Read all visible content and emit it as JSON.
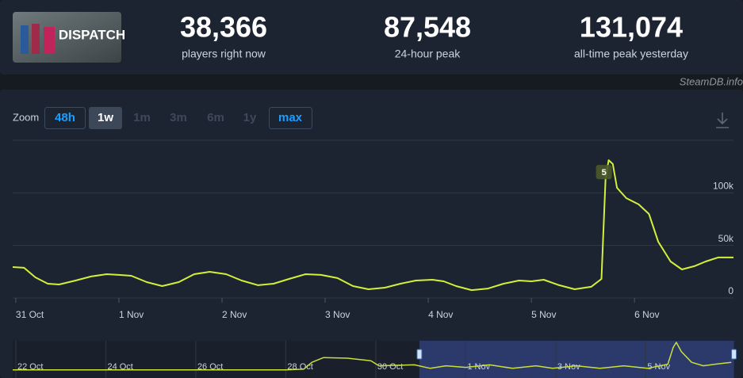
{
  "header": {
    "logo_text": "DISPATCH",
    "stats": [
      {
        "value": "38,366",
        "label": "players right now"
      },
      {
        "value": "87,548",
        "label": "24-hour peak"
      },
      {
        "value": "131,074",
        "label": "all-time peak yesterday"
      }
    ],
    "source": "SteamDB.info"
  },
  "zoom": {
    "label": "Zoom",
    "options": [
      "48h",
      "1w",
      "1m",
      "3m",
      "6m",
      "1y",
      "max"
    ]
  },
  "chart_data": [
    {
      "type": "line",
      "annotations": [
        "5"
      ],
      "color": "#d4ef3a",
      "x": [
        -0.03,
        0.08,
        0.19,
        0.31,
        0.42,
        0.58,
        0.73,
        0.88,
        1.0,
        1.12,
        1.27,
        1.42,
        1.58,
        1.73,
        1.88,
        2.04,
        2.19,
        2.35,
        2.5,
        2.65,
        2.81,
        2.96,
        3.12,
        3.27,
        3.42,
        3.58,
        3.73,
        3.88,
        4.04,
        4.15,
        4.27,
        4.42,
        4.58,
        4.73,
        4.88,
        5.0,
        5.12,
        5.27,
        5.42,
        5.58,
        5.68,
        5.72,
        5.75,
        5.79,
        5.83,
        5.92,
        6.04,
        6.14,
        6.23,
        6.35,
        6.46,
        6.58,
        6.69,
        6.81,
        6.96
      ],
      "values": [
        29400,
        28700,
        19600,
        13600,
        12800,
        16600,
        20400,
        22600,
        21900,
        21100,
        15100,
        11300,
        15100,
        22600,
        24900,
        22600,
        16600,
        12100,
        13600,
        18100,
        22600,
        21900,
        18900,
        11300,
        8300,
        9800,
        13600,
        16600,
        17300,
        15800,
        11300,
        7500,
        9000,
        13600,
        16600,
        15800,
        17300,
        12100,
        8300,
        10600,
        18100,
        113800,
        131100,
        127400,
        104800,
        95000,
        89000,
        79900,
        53500,
        34700,
        27100,
        30200,
        34700,
        38500,
        38500
      ],
      "xlim": [
        -0.03,
        6.96
      ],
      "xticks": [
        {
          "value": 0,
          "label": "31 Oct"
        },
        {
          "value": 1,
          "label": "1 Nov"
        },
        {
          "value": 2,
          "label": "2 Nov"
        },
        {
          "value": 3,
          "label": "3 Nov"
        },
        {
          "value": 4,
          "label": "4 Nov"
        },
        {
          "value": 5,
          "label": "5 Nov"
        },
        {
          "value": 6,
          "label": "6 Nov"
        }
      ],
      "ylim": [
        0,
        150000
      ],
      "yticks": [
        0,
        {
          "value": 50000,
          "label": "50k"
        },
        {
          "value": 100000,
          "label": "100k"
        }
      ],
      "grid": true
    },
    {
      "type": "line",
      "color": "#c9e03a",
      "x": [
        -9.07,
        -6,
        -3,
        -2.6,
        -2.42,
        -2.16,
        -1.63,
        -1.11,
        -0.93,
        -0.14,
        0.21,
        0.56,
        1.0,
        1.53,
        2.04,
        2.56,
        2.93,
        3.46,
        3.98,
        4.51,
        5.04,
        5.49,
        5.61,
        5.68,
        5.79,
        6.02,
        6.28,
        6.54,
        6.9
      ],
      "values": [
        11000,
        11000,
        11000,
        14600,
        44000,
        65000,
        62000,
        51000,
        29000,
        33000,
        18000,
        29000,
        22000,
        33000,
        18000,
        29000,
        18000,
        29000,
        18000,
        29000,
        18000,
        36000,
        109000,
        131100,
        91000,
        44000,
        29000,
        36000,
        44000
      ],
      "xlim": [
        -9.07,
        6.95
      ],
      "xticks": [
        {
          "value": -9,
          "label": "22 Oct"
        },
        {
          "value": -7,
          "label": "24 Oct"
        },
        {
          "value": -5,
          "label": "26 Oct"
        },
        {
          "value": -3,
          "label": "28 Oct"
        },
        {
          "value": -1,
          "label": "30 Oct"
        },
        {
          "value": 1,
          "label": "1 Nov"
        },
        {
          "value": 3,
          "label": "3 Nov"
        },
        {
          "value": 5,
          "label": "5 Nov"
        }
      ]
    }
  ]
}
